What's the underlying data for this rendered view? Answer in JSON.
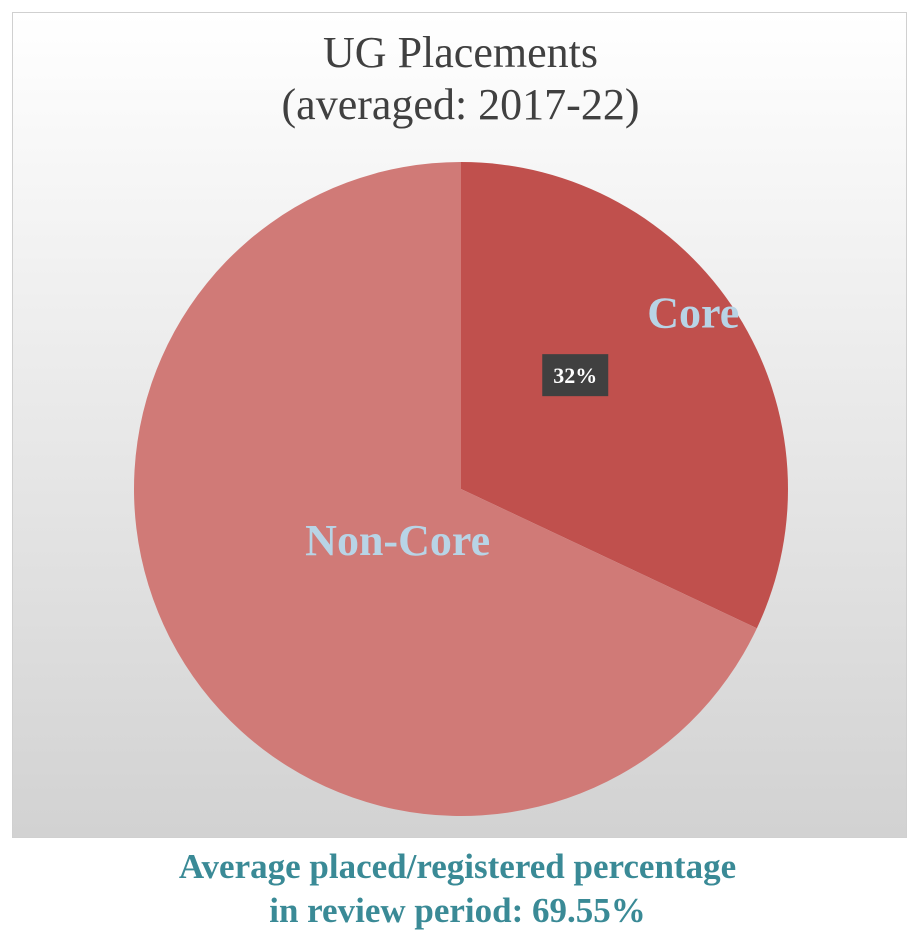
{
  "chart_data": {
    "type": "pie",
    "title_lines": [
      "UG Placements",
      "(averaged: 2017-22)"
    ],
    "slices": [
      {
        "name": "Core",
        "value": 32,
        "label": "32%",
        "color": "#c0504d"
      },
      {
        "name": "Non-Core",
        "value": 68,
        "label": "",
        "color": "#d07a77"
      }
    ],
    "category_label_color": "#b8d4e6",
    "data_label_bg": "#404040",
    "data_label_color": "#ffffff"
  },
  "caption": {
    "line1": "Average placed/registered percentage",
    "line2": "in review period: 69.55%"
  }
}
